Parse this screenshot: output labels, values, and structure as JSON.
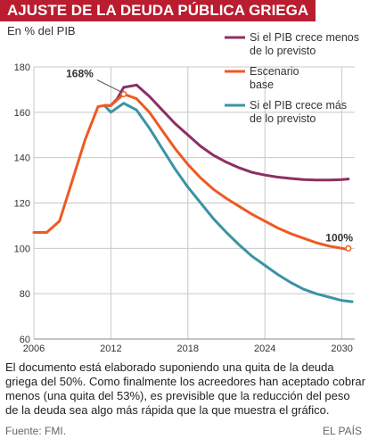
{
  "header": {
    "title": "AJUSTE DE LA DEUDA PÚBLICA GRIEGA",
    "subtitle": "En % del PIB"
  },
  "footer": {
    "note": "El documento está elaborado suponiendo una quita de la deuda griega del 50%. Como finalmente los acreedores han aceptado cobrar menos (una quita del 53%), es previsible que la reducción del peso de la deuda sea algo más rápida que la que muestra el gráfico.",
    "source": "Fuente: FMI.",
    "brand": "EL PAÍS"
  },
  "chart_data": {
    "type": "line",
    "xlim": [
      2006,
      2031
    ],
    "ylim": [
      60,
      180
    ],
    "xticks": [
      2006,
      2012,
      2018,
      2024,
      2030
    ],
    "yticks": [
      60,
      80,
      100,
      120,
      140,
      160,
      180
    ],
    "grid": true,
    "colors": {
      "slow": "#8c2f63",
      "base": "#ee5a22",
      "fast": "#3a93a6",
      "grid": "#c8c8c8",
      "title_bg": "#b91d2f"
    },
    "series": [
      {
        "name": "Si el PIB crece menos de lo previsto",
        "key": "slow",
        "x": [
          2011.5,
          2012,
          2012.5,
          2013,
          2014,
          2015,
          2016,
          2017,
          2018,
          2019,
          2020,
          2021,
          2022,
          2023,
          2024,
          2025,
          2026,
          2027,
          2028,
          2029,
          2030,
          2030.5
        ],
        "y": [
          163,
          163,
          166,
          171,
          172,
          167,
          161,
          155,
          150,
          145,
          141,
          138,
          135.5,
          133.5,
          132.3,
          131.4,
          130.8,
          130.3,
          130.1,
          130.1,
          130.3,
          130.6
        ]
      },
      {
        "name": "Escenario base",
        "key": "base",
        "x": [
          2006,
          2007,
          2008,
          2009,
          2010,
          2011,
          2011.5,
          2012,
          2013,
          2014,
          2015,
          2016,
          2017,
          2018,
          2019,
          2020,
          2021,
          2022,
          2023,
          2024,
          2025,
          2026,
          2027,
          2028,
          2029,
          2030,
          2030.5
        ],
        "y": [
          107,
          107,
          112,
          130,
          148,
          162.5,
          163,
          163,
          168,
          166,
          160,
          152,
          144,
          137,
          131,
          126,
          122,
          118.5,
          115,
          112,
          109,
          106.5,
          104.5,
          102.5,
          101,
          100,
          99.5
        ]
      },
      {
        "name": "Si el PIB crece más de lo previsto",
        "key": "fast",
        "x": [
          2011.5,
          2012,
          2013,
          2014,
          2015,
          2016,
          2017,
          2018,
          2019,
          2020,
          2021,
          2022,
          2023,
          2024,
          2025,
          2026,
          2027,
          2028,
          2029,
          2030,
          2030.8
        ],
        "y": [
          163,
          160,
          164,
          161,
          153,
          144,
          135,
          127,
          120,
          113,
          107,
          101.5,
          96.5,
          92.5,
          88.5,
          85,
          82,
          80,
          78.5,
          77,
          76.5
        ]
      }
    ],
    "annotations": [
      {
        "series": "base",
        "x": 2013,
        "y": 168,
        "label": "168%"
      },
      {
        "series": "base",
        "x": 2030.5,
        "y": 100,
        "label": "100%"
      }
    ]
  }
}
